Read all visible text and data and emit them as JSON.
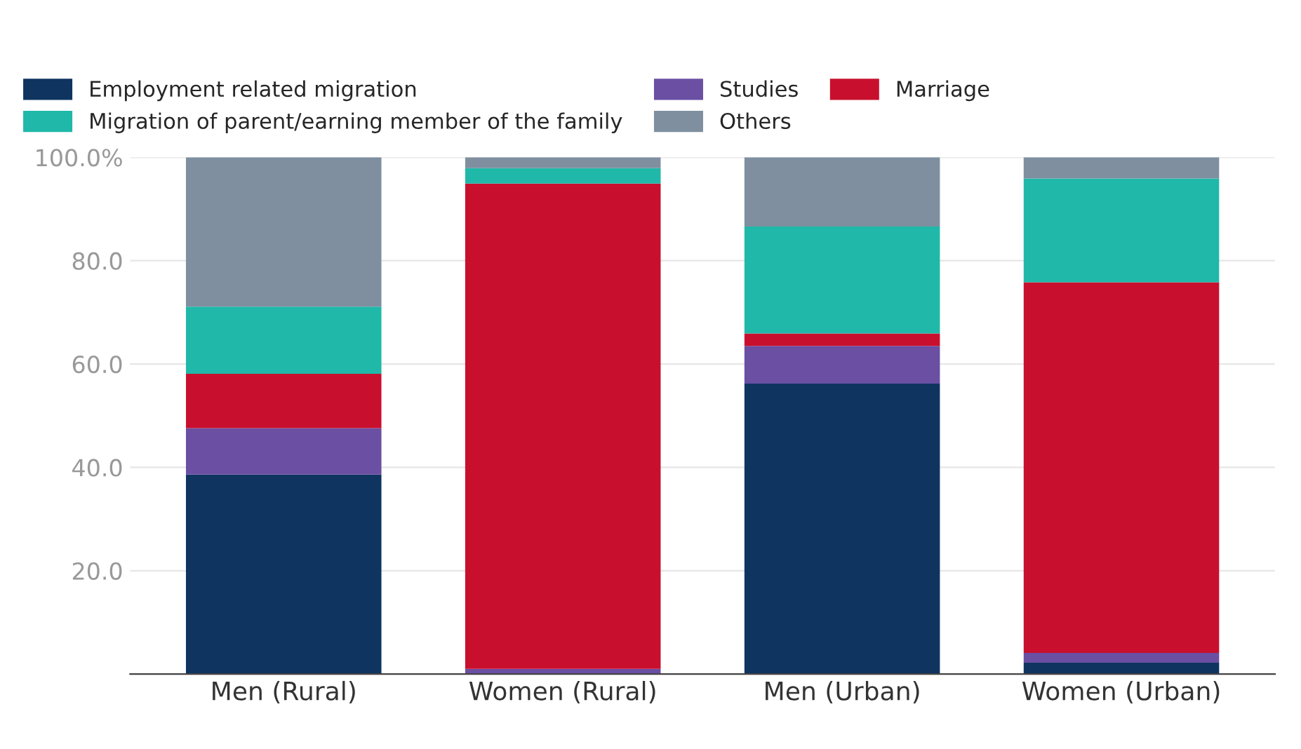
{
  "chart_data": {
    "type": "bar",
    "stacked": true,
    "categories": [
      "Men (Rural)",
      "Women (Rural)",
      "Men (Urban)",
      "Women (Urban)"
    ],
    "series": [
      {
        "name": "Employment related migration",
        "color": "#0f3460",
        "values": [
          38.6,
          null,
          56.2,
          2.2
        ]
      },
      {
        "name": "Studies",
        "color": "#6a4fa3",
        "values": [
          9.0,
          1.0,
          7.3,
          1.9
        ]
      },
      {
        "name": "Marriage",
        "color": "#c8102e",
        "values": [
          10.5,
          93.9,
          2.4,
          71.7
        ]
      },
      {
        "name": "Migration of parent/earning member of the family",
        "color": "#20b8a8",
        "values": [
          13.0,
          3.0,
          20.7,
          20.1
        ]
      },
      {
        "name": "Others",
        "color": "#7f8fa0",
        "values": [
          28.9,
          2.1,
          13.4,
          4.1
        ]
      }
    ],
    "ylim": [
      0,
      100
    ],
    "yticks": [
      {
        "value": 20,
        "label": "20.0"
      },
      {
        "value": 40,
        "label": "40.0"
      },
      {
        "value": 60,
        "label": "60.0"
      },
      {
        "value": 80,
        "label": "80.0"
      },
      {
        "value": 100,
        "label": "100.0%"
      }
    ],
    "grid": "y",
    "legend": "top left"
  }
}
